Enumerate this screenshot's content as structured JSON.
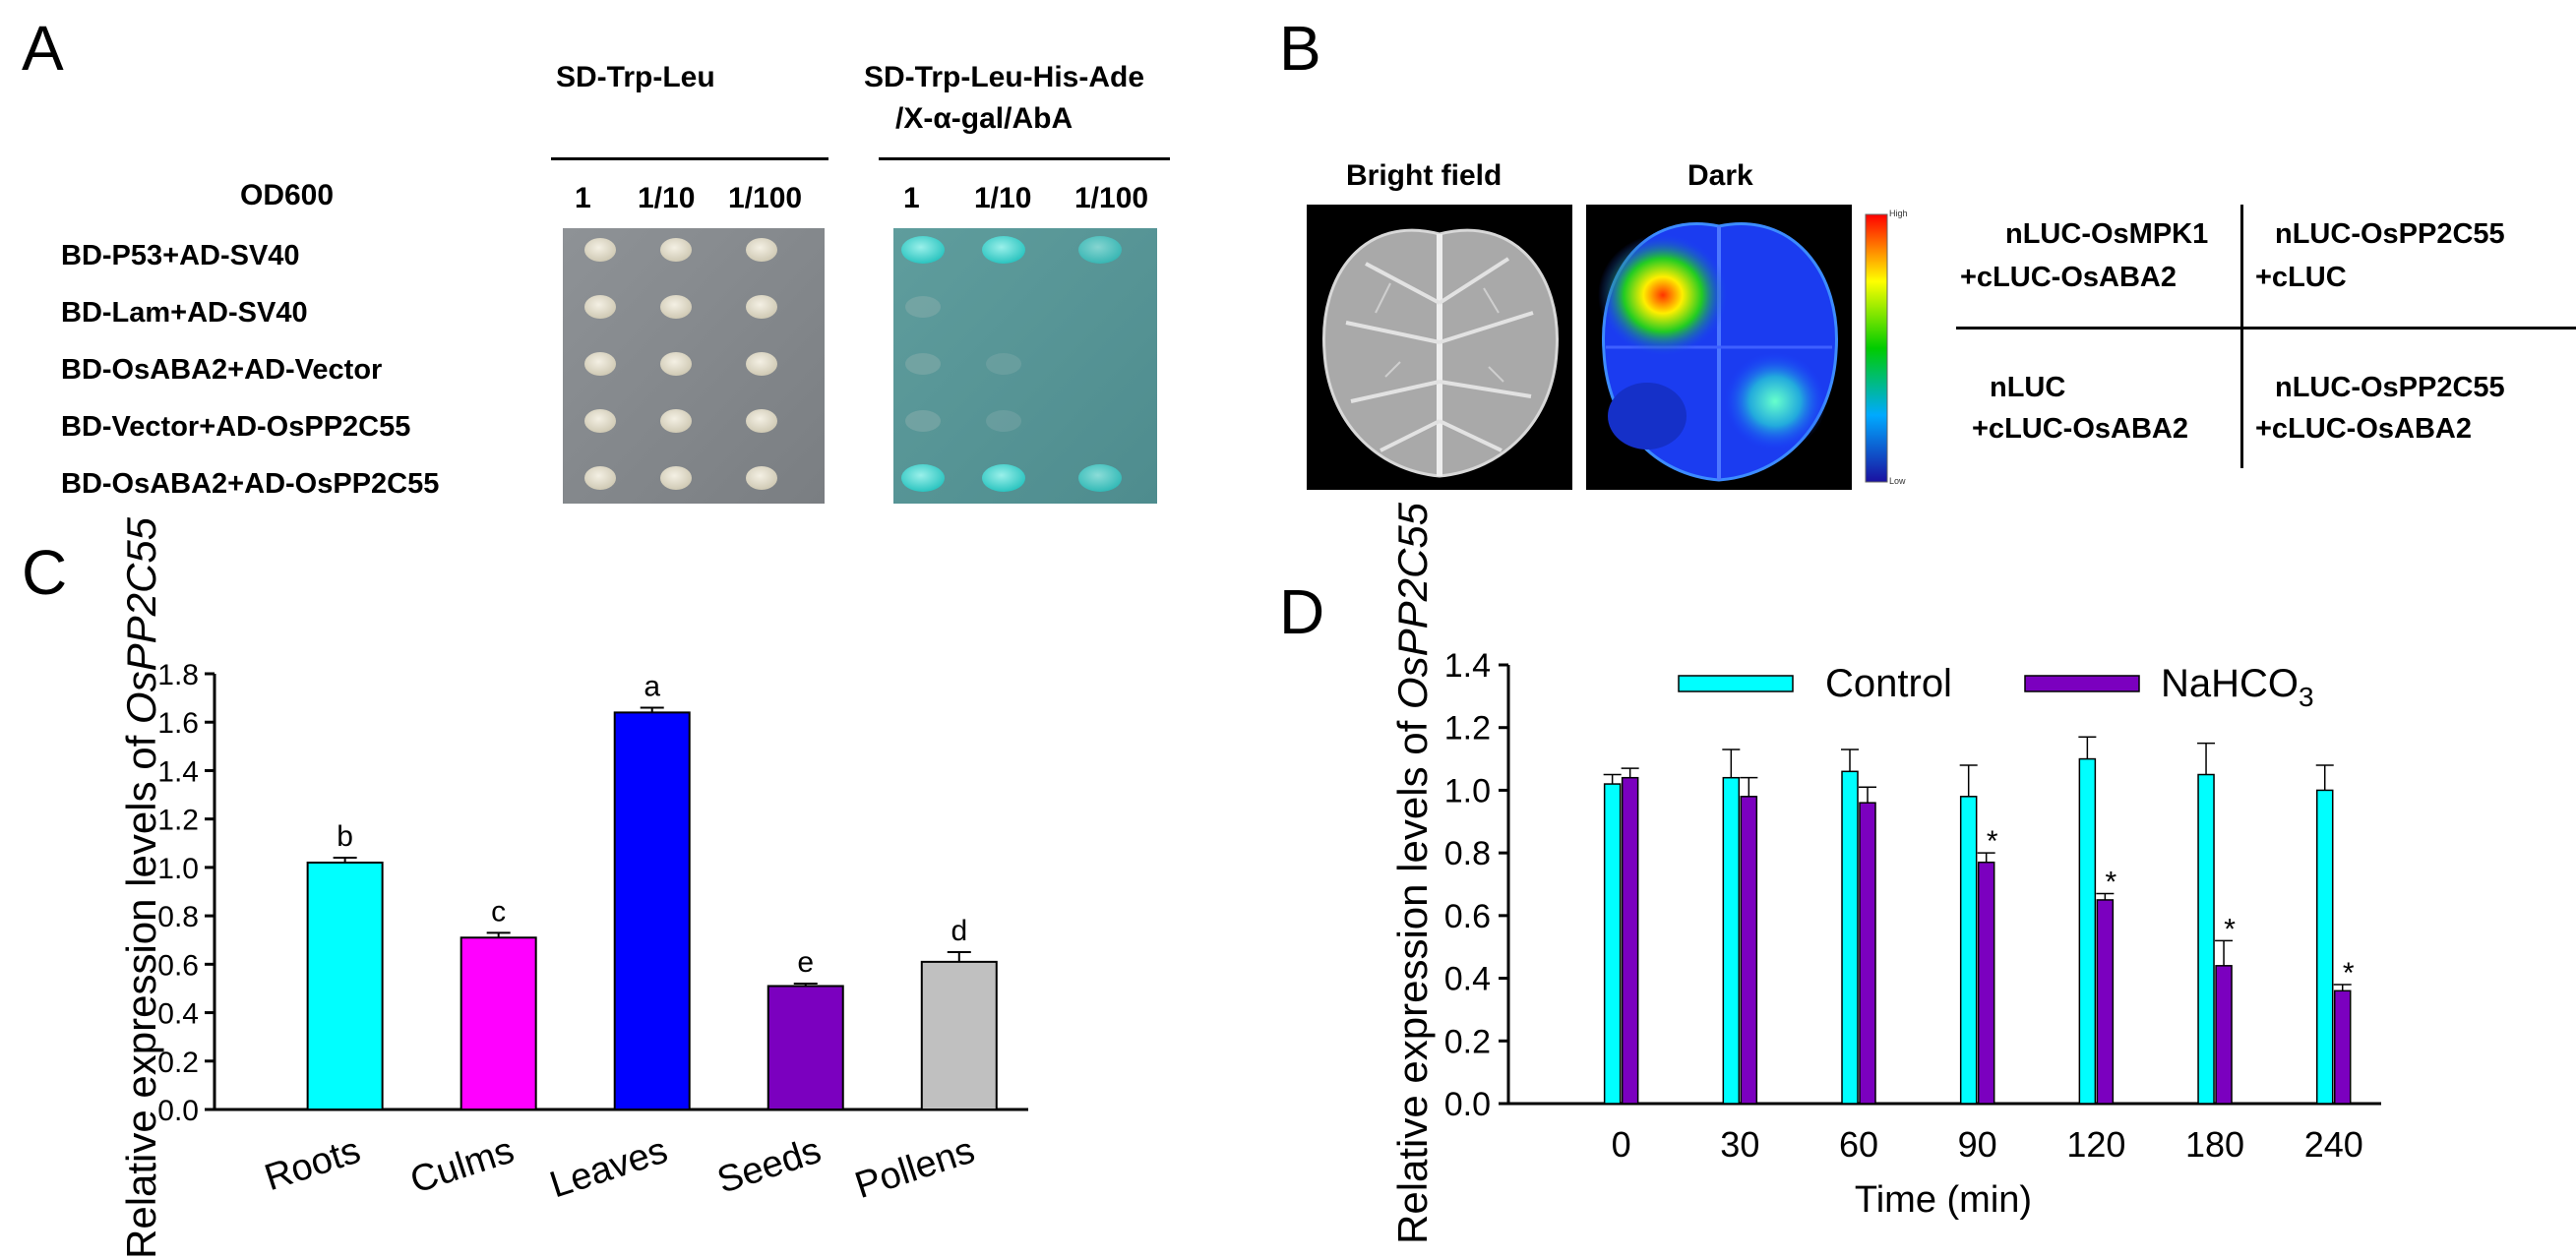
{
  "panel_labels": {
    "a": "A",
    "b": "B",
    "c": "C",
    "d": "D"
  },
  "panel_a": {
    "group1_title": "SD-Trp-Leu",
    "group2_title_line1": "SD-Trp-Leu-His-Ade",
    "group2_title_line2": "/X-α-gal/AbA",
    "od_label": "OD600",
    "dilutions": [
      "1",
      "1/10",
      "1/100"
    ],
    "rows": [
      {
        "label": "BD-P53+AD-SV40",
        "growth_sd2": [
          1,
          1,
          1
        ],
        "growth_sd4": [
          1,
          1,
          0.7
        ]
      },
      {
        "label": "BD-Lam+AD-SV40",
        "growth_sd2": [
          1,
          1,
          1
        ],
        "growth_sd4": [
          0.15,
          0,
          0
        ]
      },
      {
        "label": "BD-OsABA2+AD-Vector",
        "growth_sd2": [
          1,
          1,
          1
        ],
        "growth_sd4": [
          0.15,
          0.05,
          0
        ]
      },
      {
        "label": "BD-Vector+AD-OsPP2C55",
        "growth_sd2": [
          1,
          1,
          1
        ],
        "growth_sd4": [
          0.15,
          0.05,
          0
        ]
      },
      {
        "label": "BD-OsABA2+AD-OsPP2C55",
        "growth_sd2": [
          1,
          1,
          1
        ],
        "growth_sd4": [
          1,
          1,
          0.8
        ]
      }
    ]
  },
  "panel_b": {
    "bright_field_label": "Bright field",
    "dark_label": "Dark",
    "scale_high": "High",
    "scale_low": "Low",
    "quadrants": {
      "top_left_line1": "nLUC-OsMPK1",
      "top_left_line2": "+cLUC-OsABA2",
      "top_right_line1": "nLUC-OsPP2C55",
      "top_right_line2": "+cLUC",
      "bottom_left_line1": "nLUC",
      "bottom_left_line2": "+cLUC-OsABA2",
      "bottom_right_line1": "nLUC-OsPP2C55",
      "bottom_right_line2": "+cLUC-OsABA2"
    }
  },
  "panel_c": {
    "chart_data": {
      "type": "bar",
      "title": "",
      "ylabel_prefix": "Relative expression levels of ",
      "ylabel_gene": "OsPP2C55",
      "xlabel": "",
      "ylim": [
        0,
        1.8
      ],
      "yticks": [
        "0.0",
        "0.2",
        "0.4",
        "0.6",
        "0.8",
        "1.0",
        "1.2",
        "1.4",
        "1.6",
        "1.8"
      ],
      "categories": [
        "Roots",
        "Culms",
        "Leaves",
        "Seeds",
        "Pollens"
      ],
      "values": [
        1.02,
        0.71,
        1.64,
        0.51,
        0.61
      ],
      "errors": [
        0.02,
        0.02,
        0.02,
        0.01,
        0.04
      ],
      "letters": [
        "b",
        "c",
        "a",
        "e",
        "d"
      ],
      "colors": [
        "#00FFFF",
        "#FF00FF",
        "#0000FF",
        "#7B00BF",
        "#C0C0C0"
      ],
      "grid": false
    }
  },
  "panel_d": {
    "chart_data": {
      "type": "bar",
      "title": "",
      "ylabel_prefix": "Relative expression levels of ",
      "ylabel_gene": "OsPP2C55",
      "xlabel": "Time (min)",
      "ylim": [
        0,
        1.4
      ],
      "yticks": [
        "0.0",
        "0.2",
        "0.4",
        "0.6",
        "0.8",
        "1.0",
        "1.2",
        "1.4"
      ],
      "categories": [
        "0",
        "30",
        "60",
        "90",
        "120",
        "180",
        "240"
      ],
      "legend_position": "top",
      "grid": false,
      "series": [
        {
          "name": "Control",
          "color": "#00FFFF",
          "values": [
            1.02,
            1.04,
            1.06,
            0.98,
            1.1,
            1.05,
            1.0
          ],
          "errors": [
            0.03,
            0.09,
            0.07,
            0.1,
            0.07,
            0.1,
            0.08
          ]
        },
        {
          "name": "NaHCO3",
          "name_main": "NaHCO",
          "name_sub": "3",
          "color": "#7B00BF",
          "values": [
            1.04,
            0.98,
            0.96,
            0.77,
            0.65,
            0.44,
            0.36
          ],
          "errors": [
            0.03,
            0.06,
            0.05,
            0.03,
            0.02,
            0.08,
            0.02
          ],
          "marks": [
            "",
            "",
            "",
            "*",
            "*",
            "*",
            "*"
          ]
        }
      ]
    }
  }
}
